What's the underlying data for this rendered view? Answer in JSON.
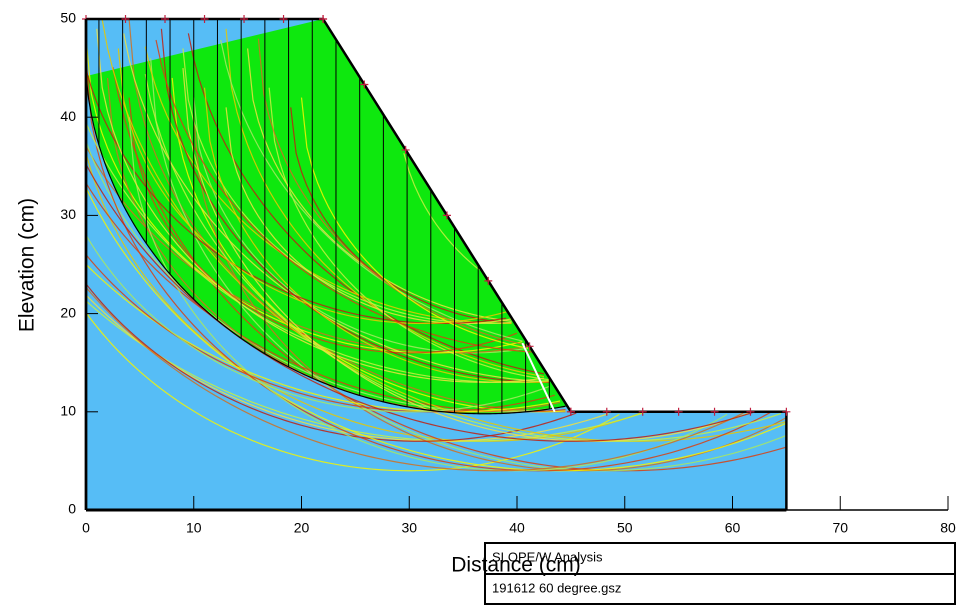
{
  "chart_data": {
    "type": "slope",
    "x_label": "Distance (cm)",
    "y_label": "Elevation (cm)",
    "xlim": [
      0,
      80
    ],
    "ylim": [
      0,
      50
    ],
    "xticks": [
      0,
      10,
      20,
      30,
      40,
      50,
      60,
      70,
      80
    ],
    "yticks": [
      0,
      10,
      20,
      30,
      40,
      50
    ],
    "profile": {
      "x": [
        0,
        22,
        45,
        65
      ],
      "values": [
        50,
        50,
        10,
        10
      ]
    }
  },
  "info_box": {
    "lines": [
      "SLOPE/W Analysis",
      "191612 60 degree.gsz"
    ]
  }
}
